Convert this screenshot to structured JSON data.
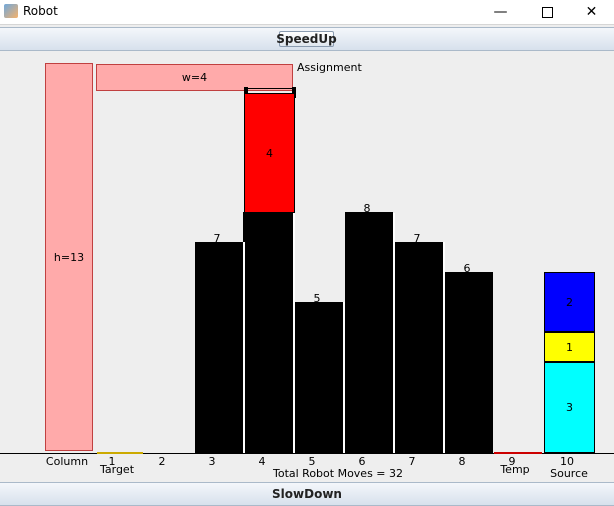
{
  "window": {
    "title": "Robot",
    "icon": "java-cup-icon"
  },
  "controls": {
    "speedup_label": "SpeedUp",
    "slowdown_label": "SlowDown"
  },
  "board": {
    "assignment_label": "Assignment",
    "width_label": "w=4",
    "height_label": "h=13",
    "column_label": "Column",
    "target_label": "Target",
    "temp_label": "Temp",
    "source_label": "Source",
    "total_moves_text": "Total Robot Moves = 32",
    "column_numbers": [
      "1",
      "2",
      "3",
      "4",
      "5",
      "6",
      "7",
      "8",
      "9",
      "10"
    ],
    "column_counts": [
      "",
      "",
      "7",
      "",
      "5",
      "8",
      "7",
      "6",
      "",
      ""
    ],
    "held_block": "4",
    "source_blocks": [
      {
        "label": "2",
        "color": "#0000ff"
      },
      {
        "label": "1",
        "color": "#ffff00"
      },
      {
        "label": "3",
        "color": "#00ffff"
      }
    ],
    "colors": {
      "pink": "#ffaaaa",
      "held": "#ff0000",
      "tower": "#000000",
      "temp_marker": "#cc0000",
      "target_marker": "#ccaa00"
    }
  }
}
